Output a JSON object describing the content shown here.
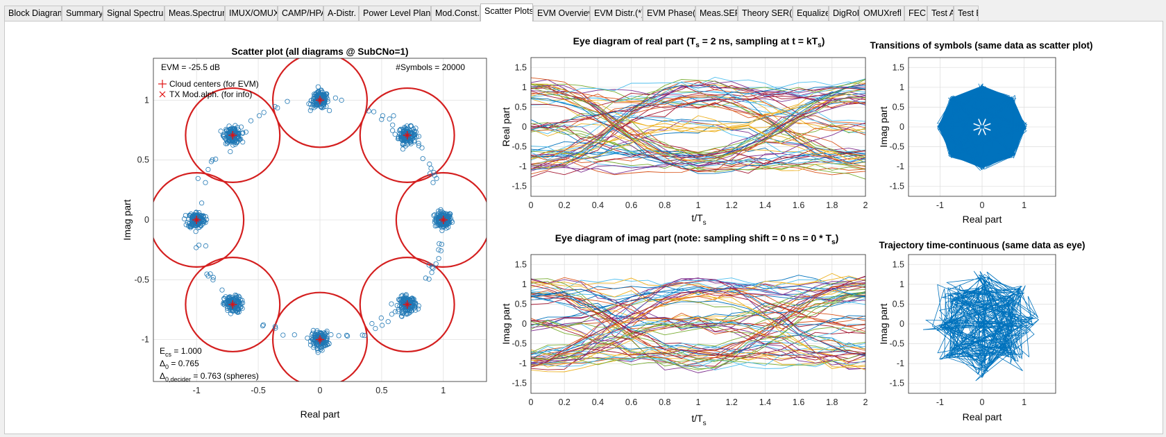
{
  "tabs": [
    {
      "label": "Block Diagram*",
      "active": false
    },
    {
      "label": "Summary",
      "active": false
    },
    {
      "label": "Signal Spectrum",
      "active": false
    },
    {
      "label": "Meas.Spectrum",
      "active": false
    },
    {
      "label": "IMUX/OMUX",
      "active": false
    },
    {
      "label": "CAMP/HPA",
      "active": false
    },
    {
      "label": "A-Distr.",
      "active": false
    },
    {
      "label": "Power Level Plan(*)",
      "active": false
    },
    {
      "label": "Mod.Const.*",
      "active": false
    },
    {
      "label": "Scatter Plots*",
      "active": true
    },
    {
      "label": "EVM Overview",
      "active": false
    },
    {
      "label": "EVM Distr.(*)",
      "active": false
    },
    {
      "label": "EVM Phase(*)",
      "active": false
    },
    {
      "label": "Meas.SER*",
      "active": false
    },
    {
      "label": "Theory SER(*)",
      "active": false
    },
    {
      "label": "Equalizer",
      "active": false
    },
    {
      "label": "DigRoF",
      "active": false
    },
    {
      "label": "OMUXrefl",
      "active": false
    },
    {
      "label": "FEC",
      "active": false
    },
    {
      "label": "Test A",
      "active": false
    },
    {
      "label": "Test B",
      "active": false
    }
  ],
  "colors": {
    "scatter_marker": "#1f77b4",
    "cloud_circle": "#d41f1f",
    "cloud_center": "#e01010",
    "trajectory": "#0072bd",
    "grid": "#e0e0e0"
  },
  "chart_data": [
    {
      "type": "scatter",
      "title": "Scatter plot (all diagrams @ SubCNo=1)",
      "xlabel": "Real part",
      "ylabel": "Imag part",
      "xlim": [
        -1.35,
        1.35
      ],
      "ylim": [
        -1.35,
        1.35
      ],
      "xticks": [
        -1,
        -0.5,
        0,
        0.5,
        1
      ],
      "yticks": [
        -1,
        -0.5,
        0,
        0.5,
        1
      ],
      "xtick_labels": [
        "-1",
        "-0.5",
        "0",
        "0.5",
        "1"
      ],
      "ytick_labels": [
        "-1",
        "-0.5",
        "0",
        "0.5",
        "1"
      ],
      "grid": true,
      "evm_text": "EVM = -25.5 dB",
      "symbols_text": "#Symbols = 20000",
      "legend": [
        "Cloud centers (for EVM)",
        "TX Mod.alph. (for info)"
      ],
      "legend_location": "top-left",
      "cloud_centers": [
        {
          "x": 1,
          "y": 0
        },
        {
          "x": 0.707,
          "y": 0.707
        },
        {
          "x": 0,
          "y": 1
        },
        {
          "x": -0.707,
          "y": 0.707
        },
        {
          "x": -1,
          "y": 0
        },
        {
          "x": -0.707,
          "y": -0.707
        },
        {
          "x": 0,
          "y": -1
        },
        {
          "x": 0.707,
          "y": -0.707
        }
      ],
      "decision_radius": 0.382,
      "info_lines": [
        {
          "sym": "E",
          "sub": "cs",
          "val": "= 1.000"
        },
        {
          "sym": "Δ",
          "sub": "0",
          "val": "  = 0.765"
        },
        {
          "sym": "Δ",
          "sub": "0,decider",
          "val": "= 0.763 (spheres)"
        }
      ]
    },
    {
      "type": "line",
      "title_parts": [
        "Eye diagram of real part   (T",
        "s",
        " = 2 ns, sampling at t = kT",
        "s",
        ")"
      ],
      "xlabel_parts": [
        "t/T",
        "s"
      ],
      "ylabel": "Real part",
      "xlim": [
        0,
        2
      ],
      "ylim": [
        -1.75,
        1.75
      ],
      "xticks": [
        0,
        0.2,
        0.4,
        0.6,
        0.8,
        1,
        1.2,
        1.4,
        1.6,
        1.8,
        2
      ],
      "xtick_labels": [
        "0",
        "0.2",
        "0.4",
        "0.6",
        "0.8",
        "1",
        "1.2",
        "1.4",
        "1.6",
        "1.8",
        "2"
      ],
      "yticks": [
        -1.5,
        -1,
        -0.5,
        0,
        0.5,
        1,
        1.5
      ],
      "ytick_labels": [
        "-1.5",
        "-1",
        "-0.5",
        "0",
        "0.5",
        "1",
        "1.5"
      ],
      "grid": true
    },
    {
      "type": "line",
      "title_parts": [
        "Eye diagram of imag part   (note: sampling shift = 0 ns = 0 * T",
        "s",
        ")"
      ],
      "xlabel_parts": [
        "t/T",
        "s"
      ],
      "ylabel": "Imag part",
      "xlim": [
        0,
        2
      ],
      "ylim": [
        -1.75,
        1.75
      ],
      "xticks": [
        0,
        0.2,
        0.4,
        0.6,
        0.8,
        1,
        1.2,
        1.4,
        1.6,
        1.8,
        2
      ],
      "xtick_labels": [
        "0",
        "0.2",
        "0.4",
        "0.6",
        "0.8",
        "1",
        "1.2",
        "1.4",
        "1.6",
        "1.8",
        "2"
      ],
      "yticks": [
        -1.5,
        -1,
        -0.5,
        0,
        0.5,
        1,
        1.5
      ],
      "ytick_labels": [
        "-1.5",
        "-1",
        "-0.5",
        "0",
        "0.5",
        "1",
        "1.5"
      ],
      "grid": true
    },
    {
      "type": "line",
      "title": "Transitions of symbols  (same data as scatter plot)",
      "xlabel": "Real part",
      "ylabel": "Imag part",
      "xlim": [
        -1.75,
        1.75
      ],
      "ylim": [
        -1.75,
        1.75
      ],
      "xticks": [
        -1,
        0,
        1
      ],
      "xtick_labels": [
        "-1",
        "0",
        "1"
      ],
      "yticks": [
        -1.5,
        -1,
        -0.5,
        0,
        0.5,
        1,
        1.5
      ],
      "ytick_labels": [
        "-1.5",
        "-1",
        "-0.5",
        "0",
        "0.5",
        "1",
        "1.5"
      ],
      "grid": true
    },
    {
      "type": "line",
      "title": "Trajectory time-continuous  (same data as eye)",
      "xlabel": "Real part",
      "ylabel": "Imag part",
      "xlim": [
        -1.75,
        1.75
      ],
      "ylim": [
        -1.75,
        1.75
      ],
      "xticks": [
        -1,
        0,
        1
      ],
      "xtick_labels": [
        "-1",
        "0",
        "1"
      ],
      "yticks": [
        -1.5,
        -1,
        -0.5,
        0,
        0.5,
        1,
        1.5
      ],
      "ytick_labels": [
        "-1.5",
        "-1",
        "-0.5",
        "0",
        "0.5",
        "1",
        "1.5"
      ],
      "grid": true
    }
  ]
}
